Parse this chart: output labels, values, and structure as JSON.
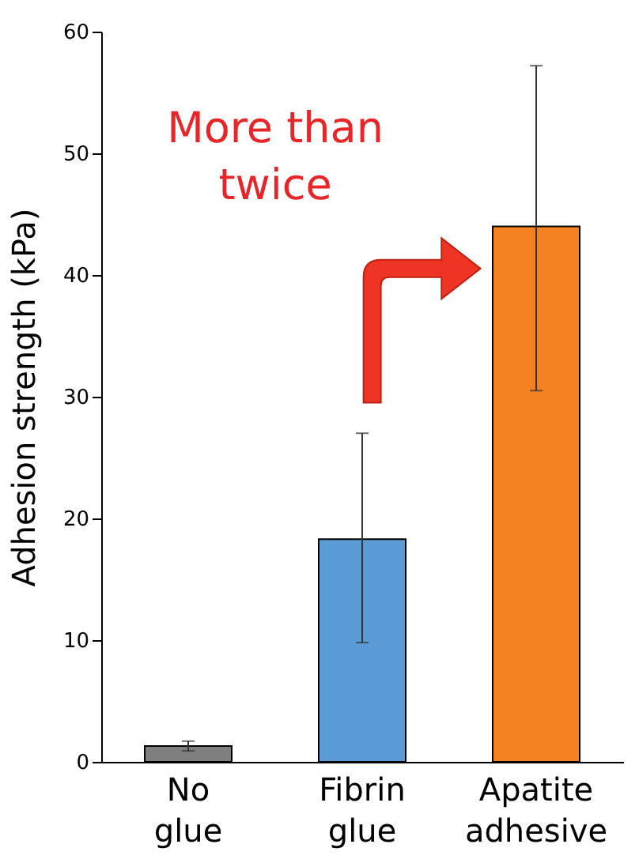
{
  "chart_data": {
    "type": "bar",
    "ylabel": "Adhesion strength (kPa)",
    "categories": [
      "No glue",
      "Fibrin glue",
      "Apatite adhesive"
    ],
    "values": [
      1.3,
      18.3,
      44.0
    ],
    "colors": [
      "#7f7f7f",
      "#5b9bd5",
      "#f58220"
    ],
    "errors": [
      [
        0.9,
        1.7
      ],
      [
        9.8,
        27.0
      ],
      [
        30.5,
        57.2
      ]
    ],
    "ylim": [
      0,
      60
    ],
    "yticks": [
      0,
      10,
      20,
      30,
      40,
      50,
      60
    ],
    "grid": false,
    "annotations": [
      "More than twice"
    ]
  }
}
